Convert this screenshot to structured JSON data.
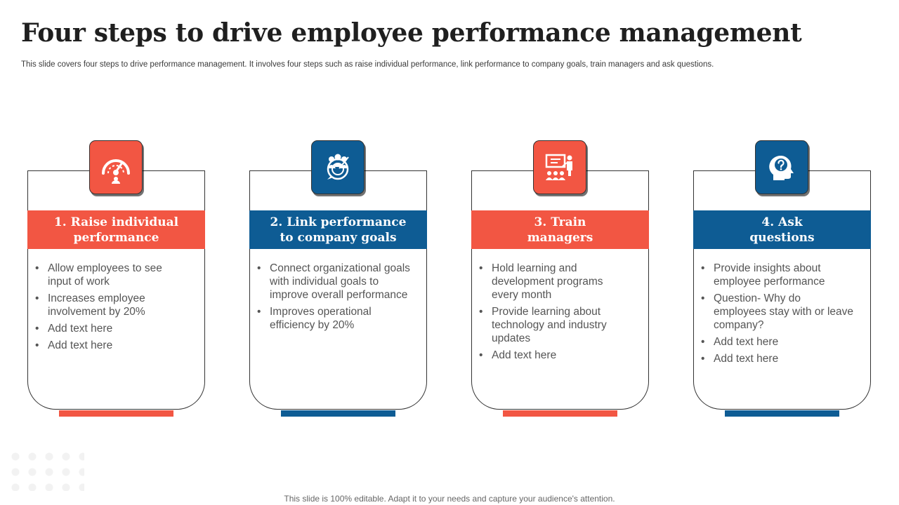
{
  "title": "Four steps to drive employee performance management",
  "subtitle": "This slide covers four steps to drive performance management. It involves four steps such as raise individual performance, link performance to company goals, train managers and ask questions.",
  "footer": "This slide is 100% editable. Adapt it to your needs and capture your audience's attention.",
  "colors": {
    "red": "#f25643",
    "blue": "#0e5c94"
  },
  "steps": [
    {
      "heading_line1": "1. Raise individual",
      "heading_line2": "performance",
      "icon": "speedometer-icon",
      "color": "red",
      "bullets": [
        "Allow employees to see input of work",
        "Increases employee involvement  by 20%",
        "Add text here",
        "Add text here"
      ]
    },
    {
      "heading_line1": "2. Link performance",
      "heading_line2": "to company goals",
      "icon": "team-target-icon",
      "color": "blue",
      "bullets": [
        "Connect organizational goals with individual goals to improve overall performance",
        "Improves operational efficiency by 20%"
      ]
    },
    {
      "heading_line1": "3. Train",
      "heading_line2": "managers",
      "icon": "presentation-training-icon",
      "color": "red",
      "bullets": [
        "Hold learning and development programs every month",
        "Provide learning about technology and industry updates",
        "Add text here"
      ]
    },
    {
      "heading_line1": "4. Ask",
      "heading_line2": "questions",
      "icon": "head-question-icon",
      "color": "blue",
      "bullets": [
        "Provide insights about employee performance",
        "Question- Why do employees stay with or leave company?",
        "Add text here",
        "Add text here"
      ]
    }
  ]
}
